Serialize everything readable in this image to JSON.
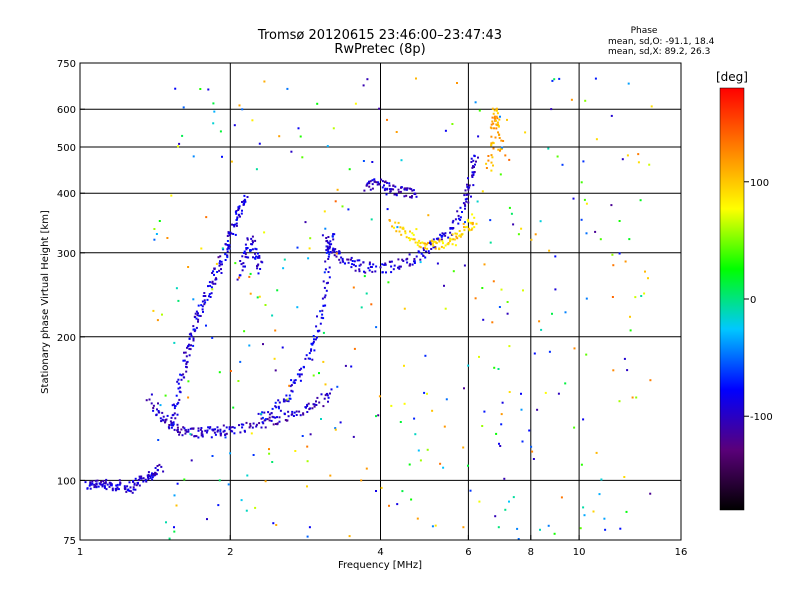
{
  "chart_data": {
    "type": "scatter",
    "title": "Tromsø 20120615 23:46:00–23:47:43",
    "subtitle": "RwPretec (8p)",
    "xlabel": "Frequency [MHz]",
    "ylabel": "Stationary phase Virtual Height [km]",
    "x_scale": "log",
    "y_scale": "log",
    "xlim": [
      1,
      16
    ],
    "ylim": [
      75,
      750
    ],
    "x_ticks": [
      1,
      2,
      4,
      6,
      8,
      10,
      16
    ],
    "x_gridlines": [
      2,
      4,
      6,
      8,
      10
    ],
    "y_ticks": [
      75,
      100,
      200,
      300,
      400,
      500,
      600,
      750
    ],
    "y_gridlines": [
      100,
      200,
      300,
      400,
      500,
      600
    ],
    "grid": true,
    "phase_stats": {
      "header": "Phase",
      "line_o": "mean, sd,O: -91.1, 18.4",
      "line_x": "mean, sd,X:  89.2, 26.3"
    },
    "colorbar": {
      "label": "[deg]",
      "ticks": [
        {
          "value": 100,
          "label": "100"
        },
        {
          "value": 0,
          "label": "0"
        },
        {
          "value": -100,
          "label": "-100"
        }
      ],
      "range": [
        -180,
        180
      ],
      "colors_bottom_to_top": [
        "#000000",
        "#5a007a",
        "#0000ff",
        "#00c8ff",
        "#00ff00",
        "#ffff00",
        "#ff8000",
        "#ff0000"
      ]
    },
    "traces": [
      {
        "phase": -95,
        "points": [
          [
            1.03,
            97
          ],
          [
            1.07,
            99
          ],
          [
            1.11,
            98
          ],
          [
            1.15,
            97
          ],
          [
            1.2,
            98
          ],
          [
            1.25,
            96
          ],
          [
            1.3,
            99
          ],
          [
            1.35,
            101
          ],
          [
            1.4,
            103
          ],
          [
            1.45,
            106
          ]
        ]
      },
      {
        "phase": -100,
        "points": [
          [
            1.38,
            150
          ],
          [
            1.45,
            136
          ],
          [
            1.52,
            130
          ],
          [
            1.6,
            127
          ],
          [
            1.7,
            126
          ],
          [
            1.8,
            126
          ],
          [
            1.9,
            127
          ],
          [
            2.0,
            128
          ],
          [
            2.2,
            130
          ],
          [
            2.4,
            133
          ],
          [
            2.6,
            136
          ],
          [
            2.8,
            140
          ],
          [
            3.0,
            145
          ],
          [
            3.2,
            153
          ]
        ]
      },
      {
        "phase": -90,
        "points": [
          [
            1.52,
            130
          ],
          [
            1.56,
            145
          ],
          [
            1.6,
            165
          ],
          [
            1.64,
            185
          ],
          [
            1.68,
            200
          ],
          [
            1.72,
            220
          ],
          [
            1.78,
            240
          ],
          [
            1.84,
            260
          ],
          [
            1.9,
            280
          ],
          [
            1.96,
            300
          ],
          [
            2.0,
            320
          ],
          [
            2.05,
            350
          ],
          [
            2.1,
            370
          ],
          [
            2.15,
            390
          ]
        ]
      },
      {
        "phase": -90,
        "points": [
          [
            2.1,
            270
          ],
          [
            2.15,
            300
          ],
          [
            2.2,
            320
          ],
          [
            2.25,
            295
          ],
          [
            2.3,
            275
          ]
        ]
      },
      {
        "phase": -85,
        "points": [
          [
            2.3,
            135
          ],
          [
            2.45,
            140
          ],
          [
            2.6,
            150
          ],
          [
            2.75,
            165
          ],
          [
            2.9,
            185
          ],
          [
            3.0,
            210
          ],
          [
            3.1,
            250
          ],
          [
            3.15,
            300
          ],
          [
            3.2,
            330
          ]
        ]
      },
      {
        "phase": -95,
        "points": [
          [
            3.1,
            320
          ],
          [
            3.2,
            305
          ],
          [
            3.3,
            295
          ],
          [
            3.5,
            285
          ],
          [
            3.7,
            280
          ],
          [
            4.0,
            278
          ],
          [
            4.3,
            282
          ],
          [
            4.6,
            290
          ],
          [
            4.9,
            300
          ],
          [
            5.2,
            315
          ],
          [
            5.5,
            335
          ],
          [
            5.8,
            365
          ],
          [
            6.0,
            400
          ],
          [
            6.1,
            440
          ],
          [
            6.2,
            480
          ]
        ]
      },
      {
        "phase": -100,
        "points": [
          [
            3.7,
            410
          ],
          [
            3.9,
            420
          ],
          [
            4.1,
            415
          ],
          [
            4.3,
            405
          ],
          [
            4.5,
            400
          ],
          [
            4.7,
            398
          ]
        ]
      },
      {
        "phase": 95,
        "points": [
          [
            4.2,
            345
          ],
          [
            4.5,
            330
          ],
          [
            4.8,
            315
          ],
          [
            5.1,
            310
          ],
          [
            5.4,
            315
          ],
          [
            5.7,
            325
          ],
          [
            6.0,
            340
          ],
          [
            6.2,
            355
          ]
        ]
      },
      {
        "phase": 110,
        "points": [
          [
            6.6,
            450
          ],
          [
            6.7,
            520
          ],
          [
            6.8,
            600
          ],
          [
            6.9,
            560
          ],
          [
            7.0,
            480
          ]
        ]
      }
    ],
    "background_noise": {
      "count": 380,
      "xlim": [
        1.4,
        14
      ],
      "ylim": [
        75,
        700
      ],
      "phase_range": [
        -120,
        140
      ]
    }
  }
}
